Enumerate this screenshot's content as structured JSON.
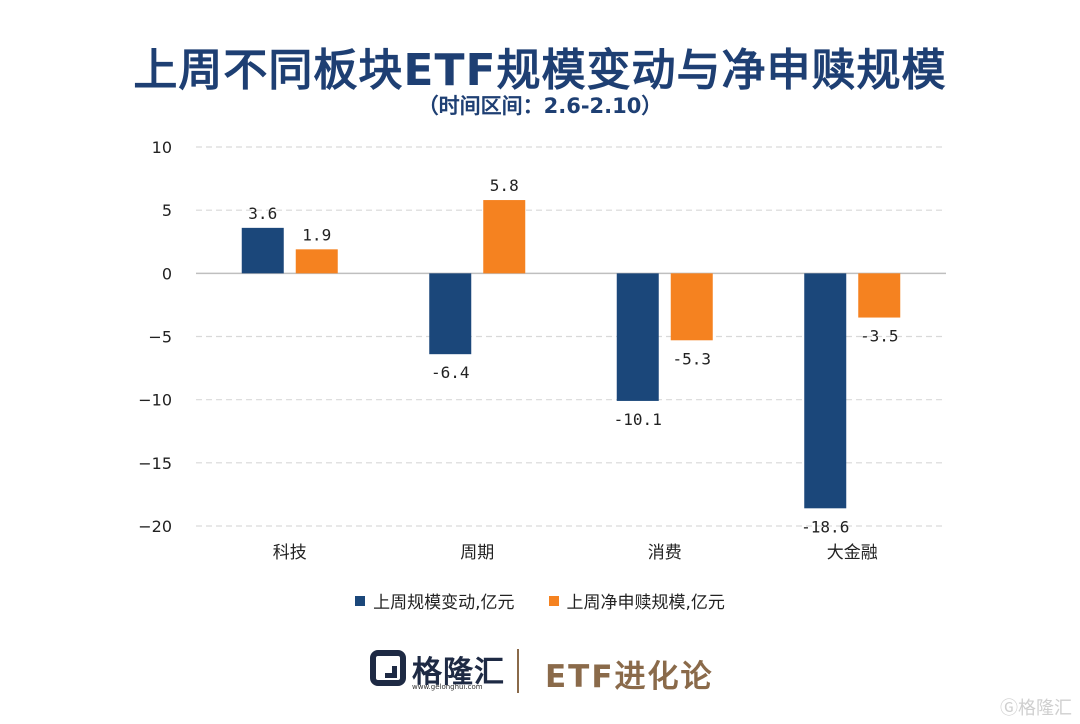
{
  "header": {
    "title": "上周不同板块ETF规模变动与净申赎规模",
    "subtitle": "（时间区间：2.6-2.10）"
  },
  "chart_data": {
    "type": "bar",
    "categories": [
      "科技",
      "周期",
      "消费",
      "大金融"
    ],
    "series": [
      {
        "name": "上周规模变动,亿元",
        "color": "#1b477a",
        "values": [
          3.6,
          -6.4,
          -10.1,
          -18.6
        ]
      },
      {
        "name": "上周净申赎规模,亿元",
        "color": "#f58220",
        "values": [
          1.9,
          5.8,
          -5.3,
          -3.5
        ]
      }
    ],
    "ylim": [
      -20,
      10
    ],
    "yticks": [
      10,
      5,
      0,
      -5,
      -10,
      -15,
      -20
    ],
    "grid": true,
    "legend_position": "bottom"
  },
  "footer": {
    "logo_text": "格隆汇",
    "logo_url": "www.gelonghui.com",
    "brand": "ETF进化论",
    "watermark": "Ⓖ格隆汇"
  }
}
